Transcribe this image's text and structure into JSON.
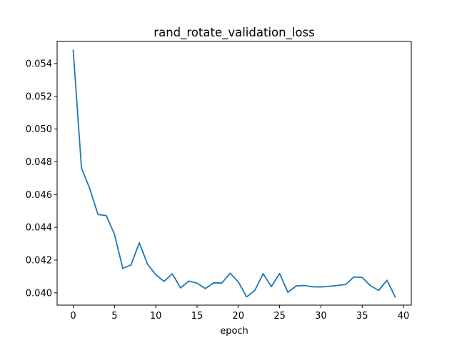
{
  "chart_data": {
    "type": "line",
    "title": "rand_rotate_validation_loss",
    "xlabel": "epoch",
    "ylabel": "",
    "xlim": [
      -1.95,
      40.95
    ],
    "ylim": [
      0.03925,
      0.05535
    ],
    "xticks": [
      0,
      5,
      10,
      15,
      20,
      25,
      30,
      35,
      40
    ],
    "yticks": [
      0.04,
      0.042,
      0.044,
      0.046,
      0.048,
      0.05,
      0.052,
      0.054
    ],
    "ytick_labels": [
      "0.040",
      "0.042",
      "0.044",
      "0.046",
      "0.048",
      "0.050",
      "0.052",
      "0.054"
    ],
    "grid": false,
    "series": [
      {
        "color": "#1f77b4",
        "x": [
          0,
          1,
          2,
          3,
          4,
          5,
          6,
          7,
          8,
          9,
          10,
          11,
          12,
          13,
          14,
          15,
          16,
          17,
          18,
          19,
          20,
          21,
          22,
          23,
          24,
          25,
          26,
          27,
          28,
          29,
          30,
          31,
          32,
          33,
          34,
          35,
          36,
          37,
          38,
          39
        ],
        "y": [
          0.05482,
          0.04762,
          0.04637,
          0.04478,
          0.04472,
          0.04357,
          0.0415,
          0.0417,
          0.04306,
          0.04175,
          0.04111,
          0.0407,
          0.04116,
          0.0403,
          0.04072,
          0.04059,
          0.04026,
          0.04061,
          0.0406,
          0.0412,
          0.04067,
          0.03975,
          0.04015,
          0.04117,
          0.04038,
          0.04118,
          0.04003,
          0.04042,
          0.04045,
          0.04037,
          0.04036,
          0.0404,
          0.04045,
          0.04051,
          0.04097,
          0.04094,
          0.04044,
          0.04015,
          0.04077,
          0.03975
        ]
      }
    ]
  }
}
